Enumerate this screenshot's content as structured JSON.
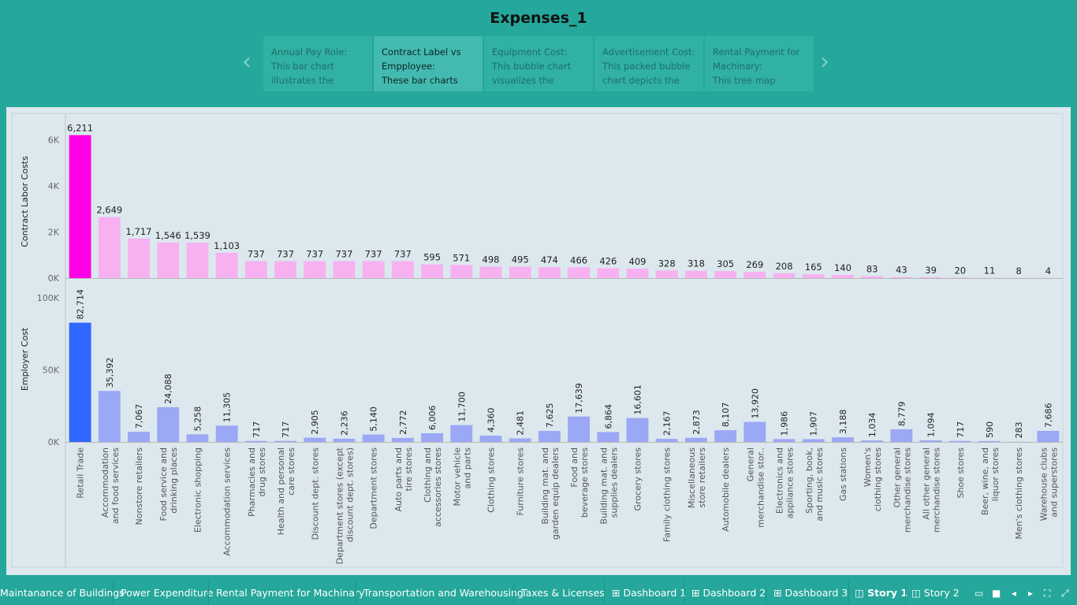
{
  "story": {
    "title": "Expenses_1",
    "points": [
      {
        "title": "Annual Pay Role:",
        "desc": "This bar chart illustrates the"
      },
      {
        "title": "Contract Label vs Empployee:",
        "desc": "These bar charts"
      },
      {
        "title": "Equipment Cost:",
        "desc": "This bubble chart visualizes the"
      },
      {
        "title": "Advertisement Cost:",
        "desc": "This packed bubble chart depicts the"
      },
      {
        "title": "Rental Payment for Machinary:",
        "desc": "This tree map"
      }
    ],
    "prev_arrow": "‹",
    "next_arrow": "›"
  },
  "tabs": [
    {
      "label": "Maintanance of Buildings"
    },
    {
      "label": "Power Expenditure"
    },
    {
      "label": "Rental Payment for Machinary"
    },
    {
      "label": "Transportation and Warehousing"
    },
    {
      "label": "Taxes & Licenses"
    },
    {
      "label": "Dashboard 1",
      "icon": "dashboard-icon"
    },
    {
      "label": "Dashboard 2",
      "icon": "dashboard-icon"
    },
    {
      "label": "Dashboard 3",
      "icon": "dashboard-icon"
    },
    {
      "label": "Story 1",
      "icon": "story-icon",
      "active": true
    },
    {
      "label": "Story 2",
      "icon": "story-icon"
    }
  ],
  "chart_data": {
    "type": "bar",
    "categories": [
      "Retail Trade",
      "Accommodation and food services",
      "Nonstore retailers",
      "Food service and drinking places",
      "Electronic shopping",
      "Accommodation services",
      "Pharmacies and drug stores",
      "Health and personal care stores",
      "Discount dept. stores",
      "Department stores (except discount dept. stores)",
      "Department stores",
      "Auto parts and tire stores",
      "Clothing and accessories stores",
      "Motor vehicle and parts",
      "Clothing stores",
      "Furniture stores",
      "Building mat. and garden equip dealers",
      "Food and beverage stores",
      "Building mat. and supplies dealers",
      "Grocery stores",
      "Family clothing stores",
      "Miscellaneous store retailers",
      "Automobile dealers",
      "General merchandise stor..",
      "Electronics and appliance stores",
      "Sporting, book, and music stores",
      "Gas stations",
      "Women's clothing stores",
      "Other general merchandise stores",
      "All other general merchandise stores",
      "Shoe stores",
      "Beer, wine, and liquor stores",
      "Men's clothing stores",
      "Warehouse clubs and superstores"
    ],
    "series": [
      {
        "name": "Contract Labor Costs",
        "values": [
          6211,
          2649,
          1717,
          1546,
          1539,
          1103,
          737,
          737,
          737,
          737,
          737,
          737,
          595,
          571,
          498,
          495,
          474,
          466,
          426,
          409,
          328,
          318,
          305,
          269,
          208,
          165,
          140,
          83,
          43,
          39,
          20,
          11,
          8,
          4
        ],
        "labels": [
          "6,211",
          "2,649",
          "1,717",
          "1,546",
          "1,539",
          "1,103",
          "737",
          "737",
          "737",
          "737",
          "737",
          "737",
          "595",
          "571",
          "498",
          "495",
          "474",
          "466",
          "426",
          "409",
          "328",
          "318",
          "305",
          "269",
          "208",
          "165",
          "140",
          "83",
          "43",
          "39",
          "20",
          "11",
          "8",
          "4"
        ],
        "ylabel": "Contract Labor Costs",
        "yticks": [
          0,
          2000,
          4000,
          6000
        ],
        "ytick_labels": [
          "0K",
          "2K",
          "4K",
          "6K"
        ],
        "ylim": [
          0,
          6400
        ],
        "color_max": "#ff00e6",
        "color_min": "#dbc9dd",
        "color_other": "#f7b1f1"
      },
      {
        "name": "Employer Cost",
        "values": [
          82714,
          35392,
          7067,
          24088,
          5258,
          11305,
          717,
          717,
          2905,
          2236,
          5140,
          2772,
          6006,
          11700,
          4360,
          2481,
          7625,
          17639,
          6864,
          16601,
          2167,
          2873,
          8107,
          13920,
          1986,
          1907,
          3188,
          1034,
          8779,
          1094,
          717,
          590,
          283,
          7686
        ],
        "labels": [
          "82,714",
          "35,392",
          "7,067",
          "24,088",
          "5,258",
          "11,305",
          "717",
          "717",
          "2,905",
          "2,236",
          "5,140",
          "2,772",
          "6,006",
          "11,700",
          "4,360",
          "2,481",
          "7,625",
          "17,639",
          "6,864",
          "16,601",
          "2,167",
          "2,873",
          "8,107",
          "13,920",
          "1,986",
          "1,907",
          "3,188",
          "1,034",
          "8,779",
          "1,094",
          "717",
          "590",
          "283",
          "7,686"
        ],
        "ylabel": "Employer Cost",
        "yticks": [
          0,
          50000,
          100000
        ],
        "ytick_labels": [
          "0K",
          "50K",
          "100K"
        ],
        "ylim": [
          0,
          100000
        ],
        "color_max": "#2f67ff",
        "color_min": "#c9cde2",
        "color_other": "#9ba8f5"
      }
    ],
    "grid": false
  }
}
